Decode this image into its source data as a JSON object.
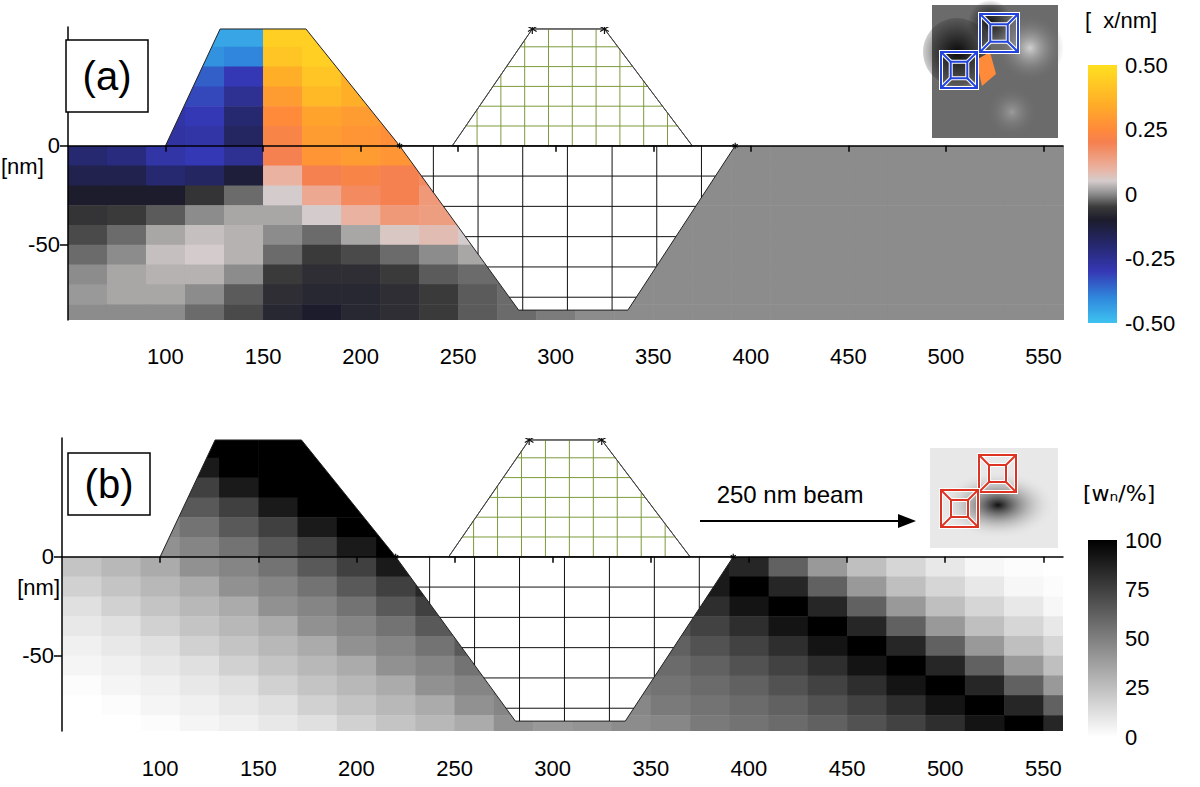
{
  "chart_data": [
    {
      "type": "heatmap",
      "title": "(a)",
      "xlabel": "[nm]",
      "xlim": [
        50,
        560
      ],
      "xticks": [
        100,
        150,
        200,
        250,
        300,
        350,
        400,
        450,
        500,
        550
      ],
      "ylim": [
        -88,
        60
      ],
      "yticks": [
        -50,
        0
      ],
      "x": [
        60,
        80,
        100,
        120,
        140,
        160,
        180,
        200,
        220,
        240,
        260,
        280,
        300,
        320,
        340,
        360,
        380,
        400,
        420,
        440,
        460,
        480,
        500,
        520,
        540,
        560
      ],
      "y": [
        55,
        45,
        35,
        25,
        15,
        5,
        -5,
        -15,
        -25,
        -35,
        -45,
        -55,
        -65,
        -75,
        -85
      ],
      "cells": [
        [
          null,
          null,
          null,
          -0.45,
          -0.45,
          0.45,
          0.45,
          null,
          null,
          null,
          null,
          null,
          null,
          null,
          null,
          null,
          null,
          null,
          null,
          null,
          null,
          null,
          null,
          null,
          null,
          null
        ],
        [
          null,
          null,
          null,
          -0.42,
          -0.4,
          0.42,
          0.45,
          0.4,
          null,
          null,
          null,
          null,
          null,
          null,
          null,
          null,
          null,
          null,
          null,
          null,
          null,
          null,
          null,
          null,
          null,
          null
        ],
        [
          null,
          null,
          null,
          -0.35,
          -0.3,
          0.35,
          0.42,
          0.35,
          null,
          null,
          null,
          null,
          null,
          null,
          null,
          null,
          null,
          null,
          null,
          null,
          null,
          null,
          null,
          null,
          null,
          null
        ],
        [
          null,
          null,
          -0.3,
          -0.32,
          -0.25,
          0.3,
          0.38,
          0.35,
          0.3,
          null,
          null,
          null,
          null,
          null,
          null,
          null,
          null,
          null,
          null,
          null,
          null,
          null,
          null,
          null,
          null,
          null
        ],
        [
          null,
          null,
          -0.28,
          -0.3,
          -0.2,
          0.25,
          0.32,
          0.3,
          0.28,
          null,
          null,
          null,
          null,
          null,
          null,
          null,
          null,
          null,
          null,
          null,
          null,
          null,
          null,
          null,
          null,
          null
        ],
        [
          null,
          null,
          -0.27,
          -0.28,
          -0.18,
          0.22,
          0.3,
          0.28,
          0.26,
          null,
          null,
          null,
          null,
          null,
          null,
          null,
          null,
          null,
          null,
          null,
          null,
          null,
          null,
          null,
          null,
          null
        ],
        [
          -0.2,
          -0.22,
          -0.28,
          -0.3,
          -0.25,
          0.2,
          0.28,
          0.3,
          0.28,
          null,
          null,
          null,
          null,
          null,
          null,
          null,
          0,
          0,
          0,
          0,
          0,
          0,
          0,
          0,
          0,
          0
        ],
        [
          -0.15,
          -0.15,
          -0.2,
          -0.18,
          -0.12,
          0.1,
          0.2,
          0.22,
          0.2,
          0.18,
          null,
          null,
          null,
          null,
          null,
          null,
          0,
          0,
          0,
          0,
          0,
          0,
          0,
          0,
          0,
          0
        ],
        [
          -0.1,
          -0.1,
          -0.1,
          -0.06,
          -0.02,
          0.05,
          0.12,
          0.18,
          0.2,
          0.15,
          null,
          null,
          null,
          null,
          null,
          null,
          0,
          0,
          0,
          0,
          0,
          0,
          0,
          0,
          0,
          0
        ],
        [
          -0.06,
          -0.05,
          -0.03,
          0,
          0.02,
          0.02,
          0.05,
          0.1,
          0.15,
          0.14,
          null,
          null,
          null,
          null,
          null,
          0,
          0,
          0,
          0,
          0,
          0,
          0,
          0,
          0,
          0,
          0
        ],
        [
          -0.04,
          -0.02,
          0.02,
          0.04,
          0.03,
          0,
          -0.02,
          0.02,
          0.06,
          0.08,
          0.05,
          null,
          null,
          null,
          null,
          0,
          0,
          0,
          0,
          0,
          0,
          0,
          0,
          0,
          0,
          0
        ],
        [
          -0.02,
          0,
          0.04,
          0.05,
          0.03,
          -0.02,
          -0.05,
          -0.04,
          -0.02,
          0,
          0.02,
          null,
          null,
          null,
          null,
          0,
          0,
          0,
          0,
          0,
          0,
          0,
          0,
          0,
          0,
          0
        ],
        [
          0,
          0.02,
          0.03,
          0.03,
          0,
          -0.05,
          -0.07,
          -0.07,
          -0.05,
          -0.03,
          -0.02,
          -0.02,
          null,
          null,
          0,
          0,
          0,
          0,
          0,
          0,
          0,
          0,
          0,
          0,
          0,
          0
        ],
        [
          0.01,
          0.02,
          0.02,
          0,
          -0.03,
          -0.07,
          -0.08,
          -0.08,
          -0.07,
          -0.05,
          -0.03,
          -0.02,
          null,
          null,
          0,
          0,
          0,
          0,
          0,
          0,
          0,
          0,
          0,
          0,
          0,
          0
        ],
        [
          0,
          0,
          0,
          -0.02,
          -0.04,
          -0.08,
          -0.1,
          -0.08,
          -0.07,
          -0.05,
          -0.03,
          -0.02,
          -0.01,
          0,
          0,
          0,
          0,
          0,
          0,
          0,
          0,
          0,
          0,
          0,
          0,
          0
        ]
      ],
      "colorbar": {
        "label": "[  x/nm]",
        "range": [
          -0.5,
          0.5
        ],
        "ticks": [
          {
            "value": -0.5,
            "label": "-0.50"
          },
          -0.25,
          0,
          0.25,
          {
            "value": 0.5,
            "label": "0.50"
          }
        ]
      },
      "regions": {
        "fin": [
          [
            100,
            0
          ],
          [
            128,
            59
          ],
          [
            172,
            59
          ],
          [
            220,
            0
          ]
        ],
        "masked_fin": [
          [
            247,
            0
          ],
          [
            288,
            59
          ],
          [
            325,
            59
          ],
          [
            370,
            0
          ]
        ],
        "trench": [
          [
            220,
            0
          ],
          [
            281,
            -83
          ],
          [
            337,
            -83
          ],
          [
            392,
            0
          ]
        ]
      }
    },
    {
      "type": "heatmap",
      "title": "(b)",
      "xlabel": "[nm]",
      "annotation": "250 nm beam",
      "xlim": [
        50,
        560
      ],
      "xticks": [
        100,
        150,
        200,
        250,
        300,
        350,
        400,
        450,
        500,
        550
      ],
      "ylim": [
        -88,
        60
      ],
      "yticks": [
        -50,
        0
      ],
      "x": [
        60,
        80,
        100,
        120,
        140,
        160,
        180,
        200,
        220,
        240,
        260,
        280,
        300,
        320,
        340,
        360,
        380,
        400,
        420,
        440,
        460,
        480,
        500,
        520,
        540,
        560
      ],
      "y": [
        55,
        45,
        35,
        25,
        15,
        5,
        -5,
        -15,
        -25,
        -35,
        -45,
        -55,
        -65,
        -75,
        -85
      ],
      "cells": [
        [
          null,
          null,
          null,
          100,
          100,
          100,
          100,
          null,
          null,
          null,
          null,
          null,
          null,
          null,
          null,
          null,
          null,
          null,
          null,
          null,
          null,
          null,
          null,
          null,
          null,
          null
        ],
        [
          null,
          null,
          null,
          90,
          100,
          100,
          100,
          100,
          null,
          null,
          null,
          null,
          null,
          null,
          null,
          null,
          null,
          null,
          null,
          null,
          null,
          null,
          null,
          null,
          null,
          null
        ],
        [
          null,
          null,
          null,
          75,
          90,
          100,
          100,
          100,
          null,
          null,
          null,
          null,
          null,
          null,
          null,
          null,
          null,
          null,
          null,
          null,
          null,
          null,
          null,
          null,
          null,
          null
        ],
        [
          null,
          null,
          55,
          65,
          75,
          90,
          100,
          100,
          100,
          null,
          null,
          null,
          null,
          null,
          null,
          null,
          null,
          null,
          null,
          null,
          null,
          null,
          null,
          null,
          null,
          null
        ],
        [
          null,
          null,
          48,
          55,
          65,
          75,
          90,
          100,
          100,
          null,
          null,
          null,
          null,
          null,
          null,
          null,
          null,
          null,
          null,
          null,
          null,
          null,
          null,
          null,
          null,
          null
        ],
        [
          null,
          null,
          43,
          48,
          55,
          65,
          75,
          90,
          100,
          null,
          null,
          null,
          null,
          null,
          null,
          null,
          null,
          null,
          null,
          null,
          null,
          null,
          null,
          null,
          null,
          null
        ],
        [
          23,
          28,
          33,
          43,
          48,
          55,
          65,
          75,
          90,
          null,
          null,
          null,
          null,
          null,
          null,
          null,
          90,
          85,
          62,
          40,
          25,
          16,
          9,
          3,
          1,
          0
        ],
        [
          18,
          23,
          28,
          33,
          43,
          48,
          55,
          65,
          75,
          85,
          null,
          null,
          null,
          null,
          null,
          null,
          90,
          100,
          85,
          62,
          40,
          25,
          16,
          9,
          3,
          1
        ],
        [
          12,
          18,
          23,
          28,
          33,
          43,
          48,
          55,
          65,
          75,
          null,
          null,
          null,
          null,
          null,
          null,
          82,
          92,
          100,
          85,
          62,
          40,
          25,
          16,
          9,
          3
        ],
        [
          9,
          12,
          18,
          23,
          28,
          33,
          43,
          48,
          55,
          65,
          null,
          null,
          null,
          null,
          null,
          68,
          74,
          82,
          92,
          100,
          85,
          62,
          40,
          25,
          16,
          9
        ],
        [
          6,
          9,
          12,
          18,
          23,
          28,
          33,
          43,
          48,
          55,
          65,
          null,
          null,
          null,
          null,
          62,
          68,
          74,
          82,
          92,
          100,
          85,
          62,
          40,
          25,
          16
        ],
        [
          4,
          6,
          9,
          12,
          18,
          23,
          28,
          33,
          43,
          48,
          55,
          null,
          null,
          null,
          null,
          58,
          62,
          68,
          74,
          82,
          92,
          100,
          85,
          62,
          40,
          25
        ],
        [
          1,
          4,
          6,
          9,
          12,
          18,
          23,
          28,
          33,
          43,
          48,
          55,
          null,
          null,
          52,
          55,
          58,
          62,
          68,
          74,
          82,
          92,
          100,
          85,
          62,
          40
        ],
        [
          0,
          1,
          4,
          6,
          9,
          12,
          18,
          23,
          28,
          33,
          43,
          48,
          null,
          null,
          47,
          52,
          55,
          58,
          62,
          68,
          74,
          82,
          92,
          100,
          85,
          62
        ],
        [
          0,
          0,
          1,
          4,
          6,
          9,
          12,
          18,
          23,
          28,
          33,
          43,
          40,
          42,
          45,
          47,
          52,
          55,
          58,
          62,
          68,
          74,
          82,
          92,
          100,
          85
        ]
      ],
      "colorbar": {
        "label": "[wₙ/%]",
        "range": [
          0,
          100
        ],
        "ticks": [
          0,
          25,
          50,
          75,
          100
        ]
      },
      "regions": {
        "fin": [
          [
            100,
            0
          ],
          [
            128,
            59
          ],
          [
            172,
            59
          ],
          [
            220,
            0
          ]
        ],
        "masked_fin": [
          [
            247,
            0
          ],
          [
            288,
            59
          ],
          [
            325,
            59
          ],
          [
            370,
            0
          ]
        ],
        "trench": [
          [
            220,
            0
          ],
          [
            281,
            -83
          ],
          [
            337,
            -83
          ],
          [
            392,
            0
          ]
        ]
      }
    }
  ]
}
